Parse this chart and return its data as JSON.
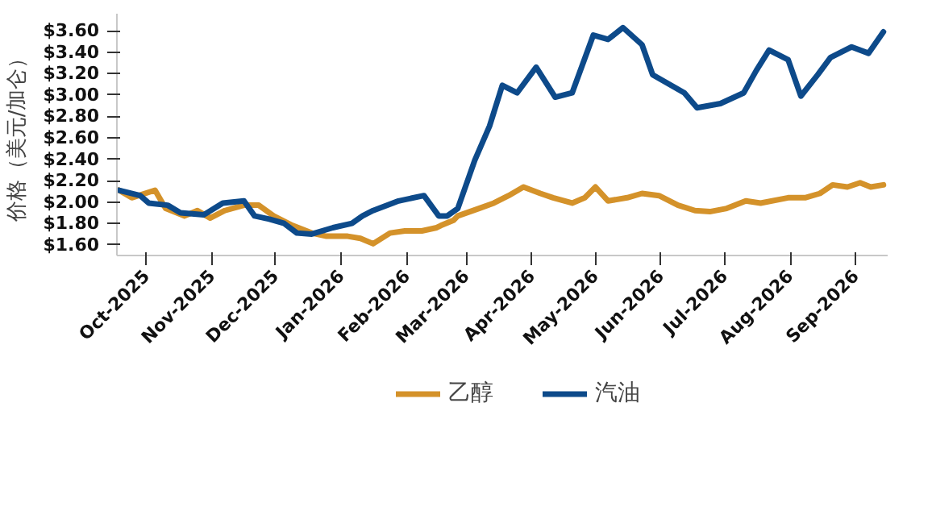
{
  "chart_data": {
    "type": "line",
    "ylabel": "价格（美元/加仑）",
    "series": [
      {
        "name": "乙醇",
        "color": "#d4922a",
        "x": [
          "2025-09-18",
          "2025-09-24",
          "2025-10-05",
          "2025-10-10",
          "2025-10-19",
          "2025-10-25",
          "2025-10-31",
          "2025-11-07",
          "2025-11-16",
          "2025-11-23",
          "2025-11-30",
          "2025-12-09",
          "2025-12-18",
          "2025-12-25",
          "2026-01-04",
          "2026-01-10",
          "2026-01-16",
          "2026-01-24",
          "2026-01-31",
          "2026-02-08",
          "2026-02-15",
          "2026-02-17",
          "2026-02-23",
          "2026-02-25",
          "2026-03-07",
          "2026-03-14",
          "2026-03-21",
          "2026-03-28",
          "2026-04-05",
          "2026-04-11",
          "2026-04-20",
          "2026-04-26",
          "2026-05-01",
          "2026-05-07",
          "2026-05-16",
          "2026-05-23",
          "2026-05-31",
          "2026-06-09",
          "2026-06-17",
          "2026-06-24",
          "2026-07-02",
          "2026-07-11",
          "2026-07-18",
          "2026-07-31",
          "2026-08-08",
          "2026-08-15",
          "2026-08-21",
          "2026-08-28",
          "2026-09-03",
          "2026-09-08",
          "2026-09-14"
        ],
        "values": [
          2.11,
          2.04,
          2.11,
          1.94,
          1.87,
          1.92,
          1.85,
          1.92,
          1.97,
          1.97,
          1.87,
          1.78,
          1.71,
          1.68,
          1.68,
          1.66,
          1.61,
          1.71,
          1.73,
          1.73,
          1.76,
          1.78,
          1.83,
          1.87,
          1.94,
          1.99,
          2.06,
          2.14,
          2.08,
          2.04,
          1.99,
          2.04,
          2.14,
          2.01,
          2.04,
          2.08,
          2.06,
          1.97,
          1.92,
          1.91,
          1.94,
          2.01,
          1.99,
          2.04,
          2.04,
          2.08,
          2.16,
          2.14,
          2.18,
          2.14,
          2.16
        ]
      },
      {
        "name": "汽油",
        "color": "#0d4a8a",
        "x": [
          "2025-09-18",
          "2025-09-28",
          "2025-10-02",
          "2025-10-11",
          "2025-10-17",
          "2025-10-28",
          "2025-11-06",
          "2025-11-16",
          "2025-11-21",
          "2025-11-28",
          "2025-12-05",
          "2025-12-11",
          "2025-12-18",
          "2025-12-28",
          "2026-01-06",
          "2026-01-11",
          "2026-01-16",
          "2026-01-28",
          "2026-02-09",
          "2026-02-16",
          "2026-02-20",
          "2026-02-25",
          "2026-03-05",
          "2026-03-12",
          "2026-03-18",
          "2026-03-25",
          "2026-04-03",
          "2026-04-12",
          "2026-04-20",
          "2026-04-30",
          "2026-05-07",
          "2026-05-14",
          "2026-05-23",
          "2026-05-28",
          "2026-06-12",
          "2026-06-18",
          "2026-06-29",
          "2026-07-10",
          "2026-07-16",
          "2026-07-22",
          "2026-07-31",
          "2026-08-06",
          "2026-08-14",
          "2026-08-20",
          "2026-08-30",
          "2026-09-07",
          "2026-09-14"
        ],
        "values": [
          2.11,
          2.06,
          1.99,
          1.97,
          1.9,
          1.88,
          1.99,
          2.01,
          1.87,
          1.84,
          1.8,
          1.71,
          1.7,
          1.76,
          1.8,
          1.87,
          1.92,
          2.01,
          2.06,
          1.87,
          1.87,
          1.94,
          2.39,
          2.71,
          3.09,
          3.02,
          3.26,
          2.98,
          3.02,
          3.56,
          3.52,
          3.63,
          3.47,
          3.19,
          3.02,
          2.88,
          2.92,
          3.02,
          3.23,
          3.42,
          3.33,
          2.99,
          3.19,
          3.35,
          3.45,
          3.39,
          3.59
        ]
      }
    ],
    "xlim": [
      "2025-09-17",
      "2026-09-16"
    ],
    "xticks": [
      {
        "value": "2025-10-01",
        "label": "Oct-2025"
      },
      {
        "value": "2025-11-01",
        "label": "Nov-2025"
      },
      {
        "value": "2025-12-01",
        "label": "Dec-2025"
      },
      {
        "value": "2026-01-01",
        "label": "Jan-2026"
      },
      {
        "value": "2026-02-01",
        "label": "Feb-2026"
      },
      {
        "value": "2026-03-01",
        "label": "Mar-2026"
      },
      {
        "value": "2026-04-01",
        "label": "Apr-2026"
      },
      {
        "value": "2026-05-01",
        "label": "May-2026"
      },
      {
        "value": "2026-06-01",
        "label": "Jun-2026"
      },
      {
        "value": "2026-07-01",
        "label": "Jul-2026"
      },
      {
        "value": "2026-08-01",
        "label": "Aug-2026"
      },
      {
        "value": "2026-09-01",
        "label": "Sep-2026"
      }
    ],
    "ylim": [
      1.5,
      3.76
    ],
    "yticks": [
      {
        "value": 1.6,
        "label": "$1.60"
      },
      {
        "value": 1.8,
        "label": "$1.80"
      },
      {
        "value": 2.0,
        "label": "$2.00"
      },
      {
        "value": 2.2,
        "label": "$2.20"
      },
      {
        "value": 2.4,
        "label": "$2.40"
      },
      {
        "value": 2.6,
        "label": "$2.60"
      },
      {
        "value": 2.8,
        "label": "$2.80"
      },
      {
        "value": 3.0,
        "label": "$3.00"
      },
      {
        "value": 3.2,
        "label": "$3.20"
      },
      {
        "value": 3.4,
        "label": "$3.40"
      },
      {
        "value": 3.6,
        "label": "$3.60"
      }
    ],
    "grid": false,
    "legend": "bottom",
    "line_style": "solid",
    "marker": "none"
  }
}
